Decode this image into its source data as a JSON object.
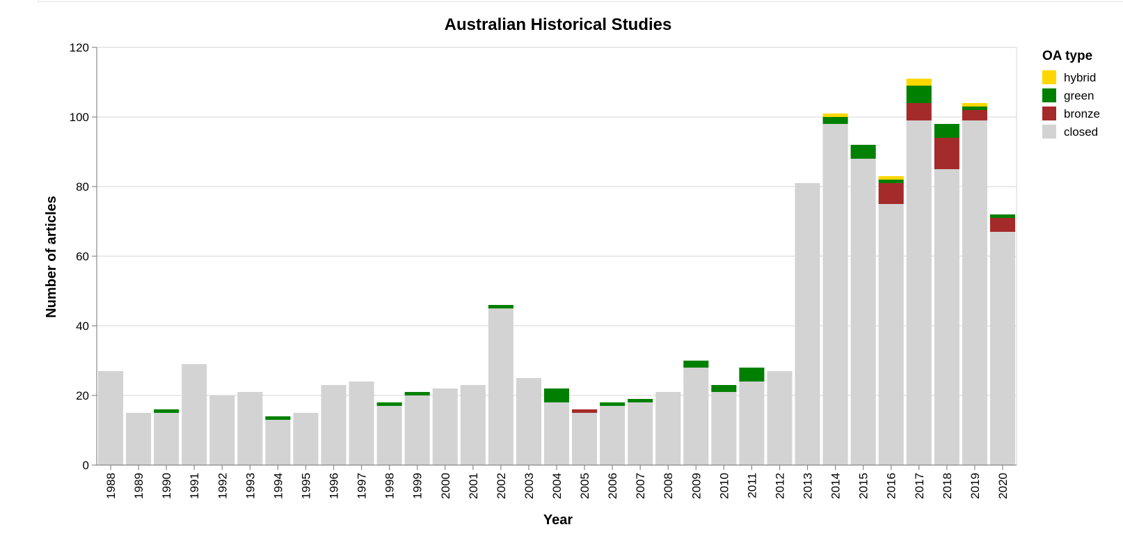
{
  "chart_data": {
    "type": "bar",
    "stacked": true,
    "title": "Australian Historical Studies",
    "xlabel": "Year",
    "ylabel": "Number of articles",
    "ylim": [
      0,
      120
    ],
    "yticks": [
      0,
      20,
      40,
      60,
      80,
      100,
      120
    ],
    "grid": true,
    "legend": {
      "title": "OA type",
      "placement": "top-right"
    },
    "categories": [
      "1988",
      "1989",
      "1990",
      "1991",
      "1992",
      "1993",
      "1994",
      "1995",
      "1996",
      "1997",
      "1998",
      "1999",
      "2000",
      "2001",
      "2002",
      "2003",
      "2004",
      "2005",
      "2006",
      "2007",
      "2008",
      "2009",
      "2010",
      "2011",
      "2012",
      "2013",
      "2014",
      "2015",
      "2016",
      "2017",
      "2018",
      "2019",
      "2020"
    ],
    "series": [
      {
        "name": "closed",
        "color": "#d3d3d3",
        "values": [
          27,
          15,
          15,
          29,
          20,
          21,
          13,
          15,
          23,
          24,
          17,
          20,
          22,
          23,
          45,
          25,
          18,
          15,
          17,
          18,
          21,
          28,
          21,
          24,
          27,
          81,
          98,
          88,
          75,
          99,
          85,
          99,
          67
        ]
      },
      {
        "name": "bronze",
        "color": "#a52a2a",
        "values": [
          0,
          0,
          0,
          0,
          0,
          0,
          0,
          0,
          0,
          0,
          0,
          0,
          0,
          0,
          0,
          0,
          0,
          1,
          0,
          0,
          0,
          0,
          0,
          0,
          0,
          0,
          0,
          0,
          6,
          5,
          9,
          3,
          4
        ]
      },
      {
        "name": "green",
        "color": "#008000",
        "values": [
          0,
          0,
          1,
          0,
          0,
          0,
          1,
          0,
          0,
          0,
          1,
          1,
          0,
          0,
          1,
          0,
          4,
          0,
          1,
          1,
          0,
          2,
          2,
          4,
          0,
          0,
          2,
          4,
          1,
          5,
          4,
          1,
          1
        ]
      },
      {
        "name": "hybrid",
        "color": "#ffd700",
        "values": [
          0,
          0,
          0,
          0,
          0,
          0,
          0,
          0,
          0,
          0,
          0,
          0,
          0,
          0,
          0,
          0,
          0,
          0,
          0,
          0,
          0,
          0,
          0,
          0,
          0,
          0,
          1,
          0,
          1,
          2,
          0,
          1,
          0
        ]
      }
    ],
    "legend_order": [
      "hybrid",
      "green",
      "bronze",
      "closed"
    ]
  }
}
